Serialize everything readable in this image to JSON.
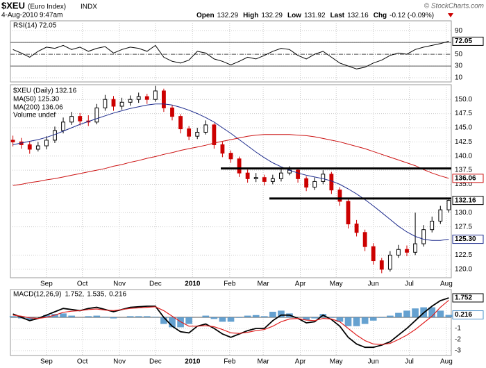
{
  "header": {
    "symbol": "$XEU",
    "name": "(Euro Index)",
    "exchange": "INDX",
    "datetime": "4-Aug-2010 9:47am",
    "quote": [
      [
        "Open",
        "132.29"
      ],
      [
        "High",
        "132.29"
      ],
      [
        "Low",
        "131.92"
      ],
      [
        "Last",
        "132.16"
      ],
      [
        "Chg",
        "-0.12 (-0.09%)"
      ]
    ],
    "credit": "© StockCharts.com"
  },
  "chart_data": [
    {
      "type": "line",
      "title": "RSI(14) 72.05",
      "ylim": [
        3,
        106.7
      ],
      "yticks": [
        10,
        30,
        50,
        70,
        90
      ],
      "levels": [
        {
          "value": 70,
          "style": "solid"
        },
        {
          "value": 50,
          "style": "dashdot"
        },
        {
          "value": 30,
          "style": "solid"
        }
      ],
      "series": [
        {
          "color": "#000000",
          "values": [
            58,
            52,
            45,
            55,
            62,
            60,
            65,
            58,
            62,
            55,
            60,
            63,
            52,
            58,
            62,
            60,
            55,
            65,
            45,
            38,
            35,
            40,
            55,
            52,
            42,
            38,
            32,
            38,
            45,
            42,
            48,
            55,
            60,
            58,
            48,
            42,
            50,
            55,
            45,
            35,
            30,
            25,
            28,
            35,
            40,
            48,
            52,
            50,
            58,
            62,
            65,
            68,
            72.05
          ]
        }
      ],
      "tags": [
        {
          "value": 72.05,
          "label": "72.05",
          "color": "#000000"
        }
      ]
    },
    {
      "type": "candlestick",
      "x": [
        0,
        1,
        2,
        3,
        4,
        5,
        6,
        7,
        8,
        9,
        10,
        11,
        12,
        13,
        14,
        15,
        16,
        17,
        18,
        19,
        20,
        21,
        22,
        23,
        24,
        25,
        26,
        27,
        28,
        29,
        30,
        31,
        32,
        33,
        34,
        35,
        36,
        37,
        38,
        39,
        40,
        41,
        42,
        43,
        44,
        45,
        46,
        47,
        48,
        49,
        50,
        51,
        52
      ],
      "xlim": [
        -0.3,
        52.3
      ],
      "xticks": [
        {
          "value": 4,
          "label": "Sep"
        },
        {
          "value": 8.29,
          "label": "Oct"
        },
        {
          "value": 12.71,
          "label": "Nov"
        },
        {
          "value": 17,
          "label": "Dec"
        },
        {
          "value": 21.43,
          "label": "2010"
        },
        {
          "value": 25.86,
          "label": "Feb"
        },
        {
          "value": 29.86,
          "label": "Mar"
        },
        {
          "value": 34.29,
          "label": "Apr"
        },
        {
          "value": 38.57,
          "label": "May"
        },
        {
          "value": 43,
          "label": "Jun"
        },
        {
          "value": 47.29,
          "label": "Jul"
        },
        {
          "value": 51.71,
          "label": "Aug"
        }
      ],
      "ylim": [
        118.5,
        152.6
      ],
      "yticks": [
        {
          "value": 120,
          "label": "120.0"
        },
        122.5,
        127.5,
        {
          "value": 130,
          "label": "130.0"
        },
        {
          "value": 135,
          "label": "135.0"
        },
        137.5,
        {
          "value": 140,
          "label": "140.0"
        },
        142.5,
        {
          "value": 145,
          "label": "145.0"
        },
        147.5,
        {
          "value": 150,
          "label": "150.0"
        }
      ],
      "grid": true,
      "candles": {
        "name": "$XEU (Daily) 132.16",
        "up_color": "#000000",
        "down_color": "#cc0000",
        "open": [
          142.8,
          142.5,
          142.0,
          141.2,
          141.8,
          142.8,
          144.5,
          146.0,
          147.0,
          146.2,
          146.0,
          148.5,
          150.0,
          148.8,
          149.5,
          150.0,
          150.5,
          150.0,
          151.5,
          148.5,
          147.0,
          144.8,
          143.5,
          144.2,
          145.5,
          142.0,
          140.5,
          139.5,
          137.0,
          136.0,
          136.2,
          135.5,
          136.0,
          137.0,
          137.5,
          136.0,
          134.5,
          135.5,
          136.8,
          134.0,
          132.0,
          128.0,
          126.5,
          124.0,
          121.5,
          120.0,
          122.5,
          123.5,
          123.0,
          124.5,
          127.0,
          128.5,
          130.5
        ],
        "high": [
          143.6,
          143.2,
          142.6,
          142.5,
          143.5,
          145.2,
          146.8,
          147.8,
          147.6,
          147.2,
          149.2,
          150.8,
          150.6,
          150.3,
          150.7,
          151.2,
          151.0,
          152.4,
          151.9,
          149.0,
          147.4,
          145.3,
          145.0,
          146.3,
          145.8,
          142.5,
          141.0,
          139.9,
          137.6,
          137.0,
          136.7,
          136.7,
          137.8,
          138.2,
          137.9,
          136.4,
          136.2,
          137.5,
          137.2,
          134.5,
          132.5,
          128.7,
          127.0,
          124.6,
          122.0,
          123.2,
          124.3,
          124.2,
          130.0,
          127.8,
          129.3,
          131.2,
          132.29
        ],
        "low": [
          141.7,
          141.3,
          140.4,
          140.8,
          141.2,
          142.3,
          144.0,
          145.5,
          145.4,
          145.3,
          145.6,
          148.0,
          148.0,
          148.2,
          148.9,
          149.4,
          149.2,
          149.6,
          147.8,
          146.3,
          144.0,
          142.8,
          143.0,
          143.8,
          141.3,
          139.8,
          138.8,
          136.3,
          135.3,
          135.4,
          134.8,
          135.0,
          135.5,
          136.6,
          135.3,
          133.8,
          134.0,
          135.0,
          133.3,
          131.2,
          127.2,
          125.8,
          123.2,
          120.8,
          119.3,
          119.6,
          122.0,
          122.3,
          122.5,
          124.0,
          126.5,
          128.0,
          130.0
        ],
        "close": [
          142.5,
          142.0,
          141.2,
          141.8,
          142.8,
          144.5,
          146.0,
          147.0,
          146.2,
          146.0,
          148.5,
          150.0,
          148.8,
          149.5,
          150.0,
          150.5,
          150.0,
          151.5,
          148.5,
          147.0,
          144.8,
          143.5,
          144.2,
          145.5,
          142.0,
          140.5,
          139.5,
          137.0,
          136.0,
          136.2,
          135.5,
          136.0,
          137.0,
          137.5,
          136.0,
          134.5,
          135.5,
          136.8,
          134.0,
          132.0,
          128.0,
          126.5,
          124.0,
          121.5,
          120.0,
          122.5,
          123.5,
          123.0,
          124.5,
          127.0,
          128.5,
          130.5,
          132.16
        ]
      },
      "series": [
        {
          "name": "MA(50) 125.30",
          "color": "#1c2a8c",
          "values": [
            142.0,
            142.3,
            142.6,
            142.9,
            143.3,
            143.8,
            144.4,
            145.0,
            145.6,
            146.1,
            146.6,
            147.1,
            147.6,
            148.0,
            148.4,
            148.7,
            149.0,
            149.2,
            149.2,
            149.0,
            148.6,
            148.1,
            147.5,
            146.8,
            146.0,
            145.0,
            144.0,
            142.9,
            141.8,
            140.7,
            139.7,
            138.8,
            138.1,
            137.5,
            137.0,
            136.6,
            136.3,
            136.0,
            135.6,
            135.0,
            134.2,
            133.3,
            132.3,
            131.2,
            130.0,
            128.8,
            127.6,
            126.6,
            125.8,
            125.3,
            125.1,
            125.1,
            125.3
          ]
        },
        {
          "name": "MA(200) 136.06",
          "color": "#cc1111",
          "values": [
            134.8,
            135.0,
            135.3,
            135.5,
            135.8,
            136.0,
            136.3,
            136.6,
            136.9,
            137.2,
            137.5,
            137.8,
            138.2,
            138.5,
            138.9,
            139.2,
            139.6,
            139.9,
            140.3,
            140.6,
            141.0,
            141.3,
            141.6,
            141.9,
            142.3,
            142.6,
            142.9,
            143.2,
            143.5,
            143.7,
            143.8,
            143.8,
            143.8,
            143.8,
            143.7,
            143.6,
            143.4,
            143.1,
            142.8,
            142.5,
            142.1,
            141.7,
            141.3,
            140.8,
            140.3,
            139.8,
            139.3,
            138.8,
            138.3,
            137.6,
            137.0,
            136.5,
            136.06
          ]
        }
      ],
      "legend_texts": [
        "Volume undef"
      ],
      "hlines": [
        {
          "y": 137.8,
          "x": [
            24.8,
            52.3
          ]
        },
        {
          "y": 132.5,
          "x": [
            30.6,
            52.3
          ]
        }
      ],
      "tags": [
        {
          "value": 136.06,
          "label": "136.06",
          "color": "#cc1111"
        },
        {
          "value": 132.16,
          "label": "132.16",
          "color": "#000000"
        },
        {
          "value": 125.3,
          "label": "125.30",
          "color": "#1c2a8c"
        }
      ]
    },
    {
      "type": "macd",
      "title": "MACD(12,26,9)",
      "ylim": [
        -3.44,
        2.5
      ],
      "yticks": [
        -3,
        -2,
        -1
      ],
      "levels": [
        {
          "value": 0,
          "style": "solid"
        }
      ],
      "series": [
        {
          "name": "1.752,",
          "type": "line",
          "color": "#000000",
          "values": [
            0.3,
            0.0,
            -0.3,
            -0.1,
            0.2,
            0.5,
            0.8,
            0.7,
            0.6,
            0.8,
            0.9,
            0.7,
            0.5,
            0.7,
            0.9,
            0.95,
            1.0,
            1.0,
            0.0,
            -0.8,
            -1.3,
            -1.4,
            -0.8,
            -0.6,
            -1.0,
            -1.5,
            -1.8,
            -1.5,
            -1.2,
            -1.0,
            -1.0,
            -0.3,
            0.2,
            0.2,
            -0.1,
            -0.5,
            -0.4,
            0.2,
            -0.2,
            -0.8,
            -1.8,
            -2.4,
            -2.7,
            -2.7,
            -2.5,
            -2.2,
            -1.6,
            -1.0,
            -0.3,
            0.4,
            1.0,
            1.5,
            1.752
          ]
        },
        {
          "name": "1.535,",
          "type": "line",
          "color": "#e02020",
          "values": [
            0.2,
            0.1,
            -0.05,
            -0.1,
            0.0,
            0.2,
            0.45,
            0.55,
            0.6,
            0.7,
            0.75,
            0.65,
            0.6,
            0.7,
            0.8,
            0.85,
            0.9,
            0.95,
            0.6,
            0.1,
            -0.4,
            -0.8,
            -0.8,
            -0.75,
            -0.85,
            -1.1,
            -1.4,
            -1.45,
            -1.35,
            -1.2,
            -1.1,
            -0.8,
            -0.4,
            -0.15,
            -0.1,
            -0.25,
            -0.3,
            -0.1,
            -0.15,
            -0.4,
            -1.0,
            -1.6,
            -2.1,
            -2.4,
            -2.45,
            -2.35,
            -2.0,
            -1.6,
            -1.1,
            -0.5,
            0.1,
            0.9,
            1.535
          ]
        },
        {
          "name": "0.216",
          "type": "bar",
          "color": "#4a90c8",
          "values": [
            0.1,
            -0.1,
            -0.25,
            0.0,
            0.2,
            0.3,
            0.35,
            0.15,
            0.0,
            0.1,
            0.15,
            0.05,
            -0.1,
            0.0,
            0.1,
            0.1,
            0.1,
            0.05,
            -0.6,
            -0.9,
            -0.9,
            -0.6,
            0.0,
            0.15,
            -0.15,
            -0.4,
            -0.4,
            -0.05,
            0.15,
            0.2,
            0.1,
            0.5,
            0.6,
            0.35,
            0.0,
            -0.25,
            -0.1,
            0.3,
            -0.05,
            -0.4,
            -0.8,
            -0.8,
            -0.6,
            -0.3,
            -0.05,
            0.15,
            0.4,
            0.6,
            0.8,
            0.9,
            0.9,
            0.6,
            0.216
          ]
        }
      ],
      "tags": [
        {
          "value": 1.752,
          "label": "1.752",
          "color": "#000000"
        },
        {
          "value": 0.216,
          "label": "0.216",
          "color": "#4a90c8"
        }
      ]
    }
  ]
}
